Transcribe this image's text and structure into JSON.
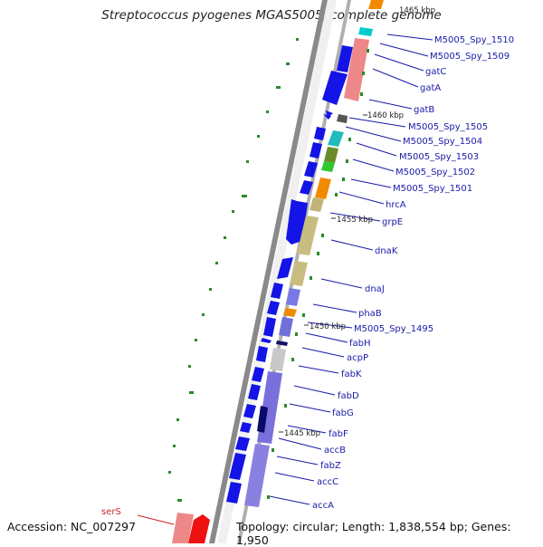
{
  "title": "Streptococcus pyogenes MGAS5005, complete genome",
  "accession": "Accession: NC_007297",
  "summary": "Topology: circular; Length: 1,838,554 bp; Genes: 1,950",
  "kbp_labels": [
    "1465 kbp",
    "1460 kbp",
    "1455 kbp",
    "1450 kbp",
    "1445 kbp"
  ],
  "gene_labels": [
    "M5005_Spy_1510",
    "M5005_Spy_1509",
    "gatC",
    "gatA",
    "gatB",
    "M5005_Spy_1505",
    "M5005_Spy_1504",
    "M5005_Spy_1503",
    "M5005_Spy_1502",
    "M5005_Spy_1501",
    "hrcA",
    "grpE",
    "dnaK",
    "dnaJ",
    "phaB",
    "M5005_Spy_1495",
    "fabH",
    "acpP",
    "fabK",
    "fabD",
    "fabG",
    "fabF",
    "accB",
    "fabZ",
    "accC",
    "accA",
    "serS"
  ],
  "colors": {
    "cds_arrow": "#1414e6",
    "backbone": "#777777",
    "tick_dot": "#2a8a2a",
    "label_text": "#1a1aa8",
    "highlight_label": "#cc2222"
  }
}
